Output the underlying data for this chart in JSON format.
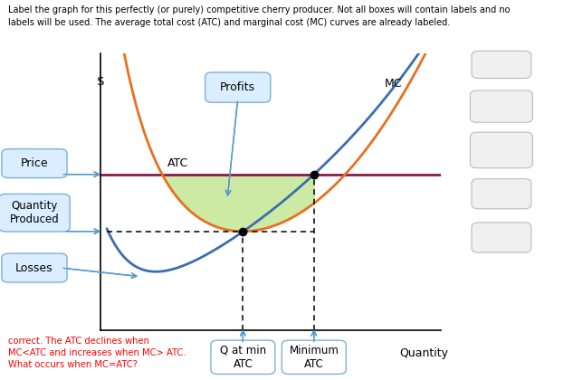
{
  "title_text": "Label the graph for this perfectly (or purely) competitive cherry producer. Not all boxes will contain labels and no\nlabels will be used. The average total cost (ATC) and marginal cost (MC) curves are already labeled.",
  "xlabel": "Quantity",
  "ylabel": "$",
  "bg_color": "#ffffff",
  "plot_bg": "#ffffff",
  "atc_color": "#e87020",
  "mc_color": "#3a6fae",
  "price_line_color": "#8b1a4a",
  "profit_fill_color": "#c8e89a",
  "red_text": "correct. The ATC declines when\nMC<ATC and increases when MC> ATC.\nWhat occurs when MC=ATC?",
  "red_text_color": "#ff0000",
  "label_price": "Price",
  "label_quantity_produced": "Quantity\nProduced",
  "label_losses": "Losses",
  "label_profits": "Profits",
  "label_q_min_atc": "Q at min\nATC",
  "label_min_atc": "Minimum\nATC",
  "label_atc": "ATC",
  "label_mc": "MC",
  "box_light_blue": "#dbeeff",
  "box_edge_blue": "#7ab0d8",
  "box_edge_gray": "#bbbbbb",
  "box_fill_gray": "#f0f0f0"
}
